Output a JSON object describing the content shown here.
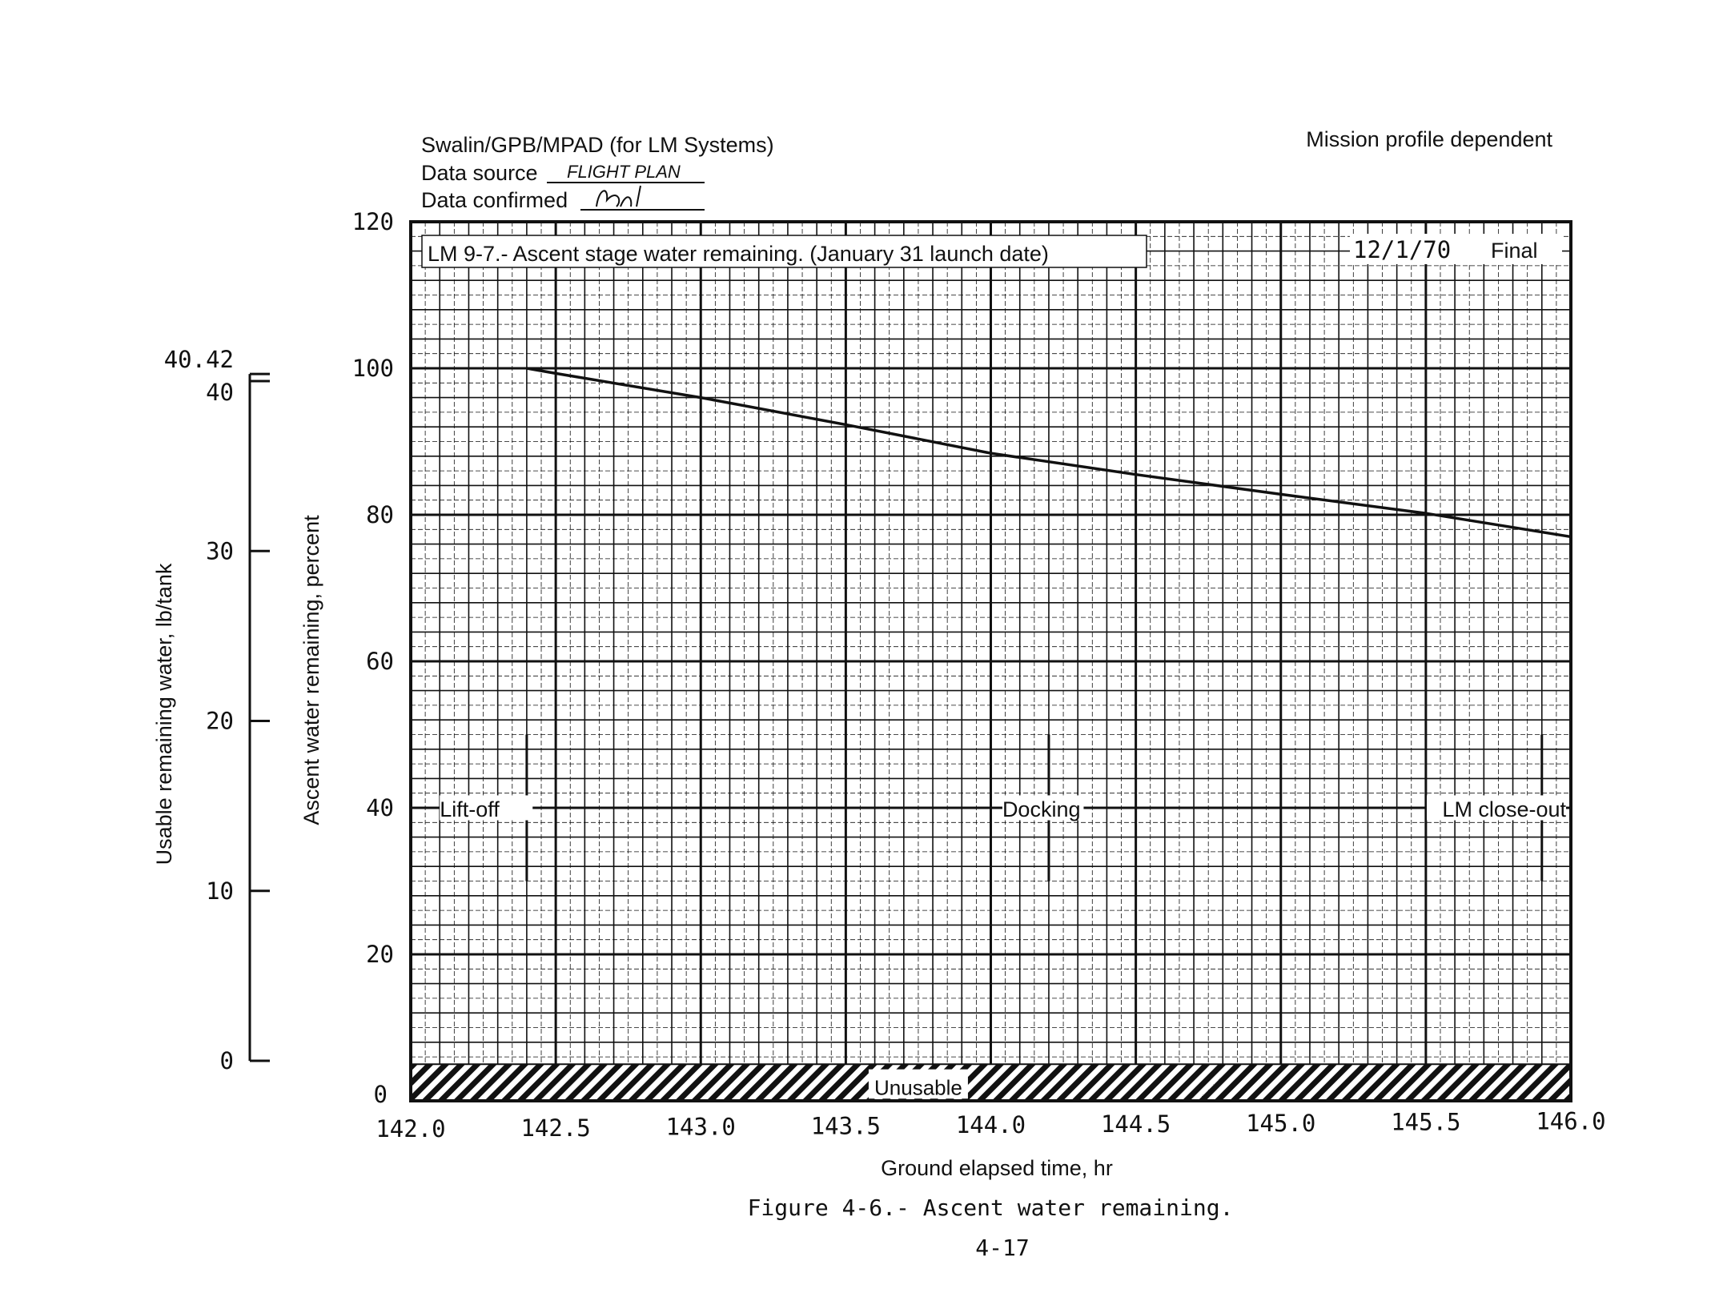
{
  "header": {
    "author": "Swalin/GPB/MPAD  (for LM Systems)",
    "data_source_label": "Data source",
    "data_source_value": "FLIGHT PLAN",
    "data_confirmed_label": "Data confirmed",
    "profile_note": "Mission profile dependent"
  },
  "chart_data": {
    "type": "line",
    "title": "LM 9-7.- Ascent stage water remaining. (January 31 launch date)",
    "date": "12/1/70",
    "status": "Final",
    "xlabel": "Ground elapsed time, hr",
    "ylabel": "Ascent water remaining, percent",
    "y2label": "Usable remaining water, lb/tank",
    "xlim": [
      142.0,
      146.0
    ],
    "ylim": [
      0,
      120
    ],
    "y2lim": [
      0,
      40.42
    ],
    "x_ticks": [
      "142.0",
      "142.5",
      "143.0",
      "143.5",
      "144.0",
      "144.5",
      "145.0",
      "145.5",
      "146.0"
    ],
    "y_ticks": [
      "0",
      "20",
      "40",
      "60",
      "80",
      "100",
      "120"
    ],
    "y2_ticks": [
      "0",
      "10",
      "20",
      "30",
      "40",
      "40.42"
    ],
    "grid": true,
    "series": [
      {
        "x": [
          142.4,
          142.5,
          143.0,
          143.5,
          144.0,
          144.5,
          145.0,
          145.5,
          146.0
        ],
        "y": [
          100.0,
          99.3,
          96.0,
          92.3,
          88.4,
          85.5,
          82.8,
          80.2,
          77.0
        ]
      }
    ],
    "events": [
      {
        "label": "Lift-off",
        "x": 142.4
      },
      {
        "label": "Docking",
        "x": 144.2
      },
      {
        "label": "LM close-out",
        "x": 145.9
      }
    ],
    "unusable_band": {
      "label": "Unusable",
      "y": [
        0,
        5
      ]
    }
  },
  "caption": "Figure 4-6.- Ascent water remaining.",
  "page_number": "4-17"
}
